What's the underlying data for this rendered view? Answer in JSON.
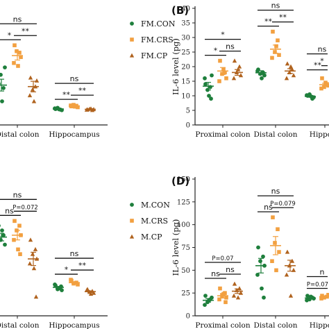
{
  "colors": {
    "CON": "#1e7f3c",
    "CRS": "#f2a040",
    "CP": "#b0631f",
    "axis": "#222222"
  },
  "chart_data": [
    {
      "panel_label": "",
      "type": "scatter",
      "ylabel": "",
      "ylim": [
        0,
        40
      ],
      "categories": [
        "Distal colon",
        "Hippocampus"
      ],
      "legend": {
        "position": "right",
        "entries": [
          "FM.CON",
          "FM.CRS",
          "FM.CP"
        ]
      },
      "series": [
        {
          "name": "FM.CON",
          "marker": "circle",
          "values": [
            [
              14,
              12.5,
              17,
              19.5,
              10,
              8
            ],
            [
              5.4,
              5.2,
              5.8,
              5.0,
              5.6,
              5.3
            ]
          ],
          "mean": [
            13.5,
            5.4
          ],
          "sem": [
            2.0,
            0.3
          ]
        },
        {
          "name": "FM.CRS",
          "marker": "square",
          "values": [
            [
              27,
              24.5,
              25,
              23,
              21,
              20
            ],
            [
              6.3,
              6.5,
              6.8,
              6.0,
              6.6,
              6.2
            ]
          ],
          "mean": [
            23.5,
            6.4
          ],
          "sem": [
            1.5,
            0.3
          ]
        },
        {
          "name": "FM.CP",
          "marker": "triangle",
          "values": [
            [
              16,
              13,
              12,
              15,
              10,
              8
            ],
            [
              5.2,
              5.0,
              5.4,
              5.3,
              5.1,
              5.5
            ]
          ],
          "mean": [
            13.0,
            5.3
          ],
          "sem": [
            1.8,
            0.2
          ]
        }
      ],
      "annotations": [
        {
          "cat": 0,
          "from": 0,
          "to": 2,
          "text": "ns"
        },
        {
          "cat": 0,
          "from": 0,
          "to": 1,
          "text": "*"
        },
        {
          "cat": 0,
          "from": 1,
          "to": 2,
          "text": "**"
        },
        {
          "cat": 1,
          "from": 0,
          "to": 2,
          "text": "ns"
        },
        {
          "cat": 1,
          "from": 0,
          "to": 1,
          "text": "**"
        },
        {
          "cat": 1,
          "from": 1,
          "to": 2,
          "text": "**"
        }
      ]
    },
    {
      "panel_label": "(B)",
      "type": "scatter",
      "ylabel": "IL-6 level (pg)",
      "ylim": [
        0,
        40
      ],
      "yticks": [
        0,
        5,
        10,
        15,
        20,
        25,
        30,
        35,
        40
      ],
      "categories": [
        "Proximal colon",
        "Distal colon",
        "Hippocampus"
      ],
      "categories_visible": [
        "Proximal colon",
        "Distal colon",
        "Hippoca"
      ],
      "series": [
        {
          "name": "CON",
          "marker": "circle",
          "values": [
            [
              14,
              13,
              12,
              17,
              16,
              10,
              9
            ],
            [
              19,
              18,
              17.5,
              17,
              18.5,
              16
            ],
            [
              10,
              9,
              10.5,
              9.5,
              10.2,
              9.8
            ]
          ],
          "mean": [
            13.3,
            17.9,
            9.8
          ],
          "sem": [
            1.3,
            0.7,
            0.3
          ]
        },
        {
          "name": "CRS",
          "marker": "square",
          "values": [
            [
              22,
              18,
              17.5,
              16,
              15,
              19
            ],
            [
              32,
              29,
              25,
              24,
              23,
              27
            ],
            [
              16,
              14,
              13,
              13.5,
              12.5,
              14.5
            ]
          ],
          "mean": [
            18.5,
            26.0,
            13.8
          ],
          "sem": [
            1.2,
            1.4,
            0.5
          ]
        },
        {
          "name": "CP",
          "marker": "triangle",
          "values": [
            [
              22,
              20,
              18,
              17,
              16,
              19
            ],
            [
              21,
              19,
              18,
              17,
              16,
              20
            ],
            [
              17,
              15,
              14,
              13,
              16
            ]
          ],
          "mean": [
            18.0,
            18.5,
            15.0
          ],
          "sem": [
            1.0,
            0.8,
            0.8
          ]
        }
      ],
      "annotations": [
        {
          "cat": 0,
          "from": 0,
          "to": 2,
          "text": "*"
        },
        {
          "cat": 0,
          "from": 0,
          "to": 1,
          "text": "*"
        },
        {
          "cat": 0,
          "from": 1,
          "to": 2,
          "text": "ns"
        },
        {
          "cat": 1,
          "from": 0,
          "to": 2,
          "text": "ns"
        },
        {
          "cat": 1,
          "from": 0,
          "to": 1,
          "text": "**"
        },
        {
          "cat": 1,
          "from": 1,
          "to": 2,
          "text": "**"
        },
        {
          "cat": 2,
          "from": 0,
          "to": 2,
          "text": "ns"
        },
        {
          "cat": 2,
          "from": 0,
          "to": 1,
          "text": "**"
        },
        {
          "cat": 2,
          "from": 1,
          "to": 2,
          "text": "*"
        }
      ]
    },
    {
      "panel_label": "",
      "type": "scatter",
      "ylabel": "",
      "ylim": [
        0,
        150
      ],
      "categories": [
        "Distal colon",
        "Hippocampus"
      ],
      "legend": {
        "position": "right",
        "entries": [
          "M.CON",
          "M.CRS",
          "M.CP"
        ]
      },
      "series": [
        {
          "name": "M.CON",
          "marker": "circle",
          "values": [
            [
              95,
              85,
              80,
              75,
              70,
              90
            ],
            [
              32,
              30,
              28,
              27,
              33,
              29,
              31
            ]
          ],
          "mean": [
            83,
            30
          ],
          "sem": [
            4,
            1
          ]
        },
        {
          "name": "M.CRS",
          "marker": "square",
          "values": [
            [
              100,
              95,
              90,
              85,
              80,
              70,
              65
            ],
            [
              37,
              35,
              34,
              33,
              38
            ]
          ],
          "mean": [
            85,
            35
          ],
          "sem": [
            5,
            1
          ]
        },
        {
          "name": "M.CP",
          "marker": "triangle",
          "values": [
            [
              80,
              70,
              65,
              60,
              55,
              50,
              20
            ],
            [
              28,
              26,
              25,
              24,
              27,
              23
            ]
          ],
          "mean": [
            60,
            25.5
          ],
          "sem": [
            7,
            0.8
          ]
        }
      ],
      "annotations": [
        {
          "cat": 0,
          "from": 0,
          "to": 2,
          "text": "ns"
        },
        {
          "cat": 0,
          "from": 0,
          "to": 1,
          "text": "ns"
        },
        {
          "cat": 0,
          "from": 1,
          "to": 2,
          "text": "P=0.072"
        },
        {
          "cat": 1,
          "from": 0,
          "to": 2,
          "text": "ns"
        },
        {
          "cat": 1,
          "from": 0,
          "to": 1,
          "text": "*"
        },
        {
          "cat": 1,
          "from": 1,
          "to": 2,
          "text": "**"
        }
      ]
    },
    {
      "panel_label": "(D)",
      "type": "scatter",
      "ylabel": "IL-6 level (pg)",
      "ylim": [
        0,
        150
      ],
      "yticks": [
        0,
        25,
        50,
        75,
        100,
        125,
        150
      ],
      "categories": [
        "Proximal colon",
        "Distal colon",
        "Hippocampus"
      ],
      "categories_visible": [
        "Proximal colon",
        "Distal colon",
        "Hippoca"
      ],
      "series": [
        {
          "name": "CON",
          "marker": "circle",
          "values": [
            [
              22,
              18,
              15,
              20,
              12,
              17
            ],
            [
              75,
              65,
              60,
              55,
              45,
              30,
              20
            ],
            [
              22,
              20,
              18,
              19,
              17,
              21
            ]
          ],
          "mean": [
            17,
            55,
            19.5
          ],
          "sem": [
            2,
            8,
            1
          ]
        },
        {
          "name": "CRS",
          "marker": "square",
          "values": [
            [
              30,
              25,
              22,
              20,
              18,
              24,
              15
            ],
            [
              108,
              95,
              80,
              70,
              60,
              50
            ],
            [
              22,
              21,
              20,
              23,
              19
            ]
          ],
          "mean": [
            22,
            77,
            21
          ],
          "sem": [
            2.5,
            10,
            1
          ]
        },
        {
          "name": "CP",
          "marker": "triangle",
          "values": [
            [
              35,
              30,
              28,
              25,
              22,
              20
            ],
            [
              70,
              60,
              55,
              50,
              45,
              22
            ],
            [
              24,
              23,
              22,
              21
            ]
          ],
          "mean": [
            27,
            55,
            22.5
          ],
          "sem": [
            2.5,
            6,
            0.8
          ]
        }
      ],
      "annotations": [
        {
          "cat": 0,
          "from": 0,
          "to": 2,
          "text": "P=0.07"
        },
        {
          "cat": 0,
          "from": 0,
          "to": 1,
          "text": "ns"
        },
        {
          "cat": 0,
          "from": 1,
          "to": 2,
          "text": "ns"
        },
        {
          "cat": 1,
          "from": 0,
          "to": 2,
          "text": "ns"
        },
        {
          "cat": 1,
          "from": 0,
          "to": 1,
          "text": "ns"
        },
        {
          "cat": 1,
          "from": 1,
          "to": 2,
          "text": "P=0.079"
        },
        {
          "cat": 2,
          "from": 0,
          "to": 2,
          "text": "n"
        },
        {
          "cat": 2,
          "from": 0,
          "to": 1,
          "text": "P=0.07"
        }
      ]
    }
  ]
}
